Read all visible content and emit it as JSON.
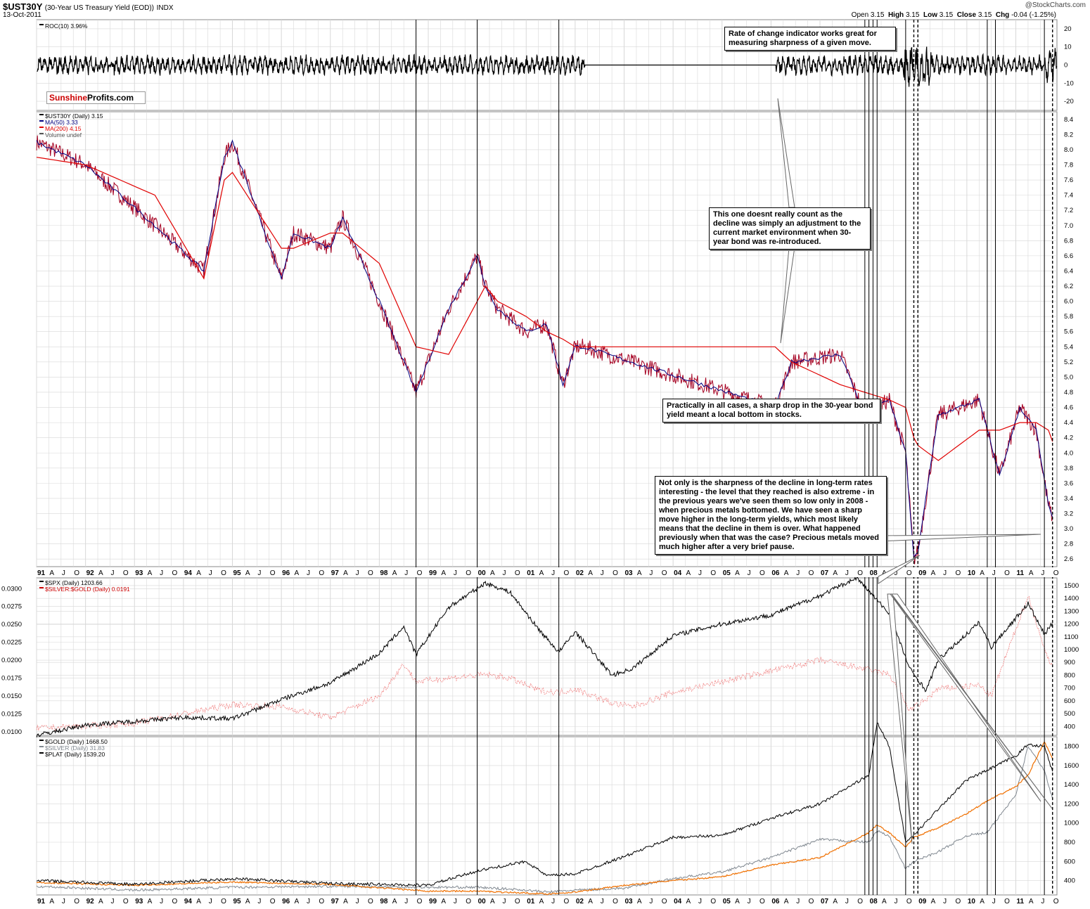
{
  "header": {
    "symbol": "$UST30Y",
    "description": "(30-Year US Treasury Yield (EOD))",
    "exchange": "INDX",
    "date": "13-Oct-2011",
    "ohlc": {
      "open_label": "Open",
      "open": "3.15",
      "high_label": "High",
      "high": "3.15",
      "low_label": "Low",
      "low": "3.15",
      "close_label": "Close",
      "close": "3.15",
      "chg_label": "Chg",
      "chg": "-0.04 (-1.25%)"
    },
    "watermark": "@StockCharts.com"
  },
  "logo": {
    "red": "Sunshine",
    "black": "Profits.com"
  },
  "callouts": {
    "roc": "Rate of change indicator works great for measuring sharpness of a given move.",
    "reintro": "This one doesnt really count as the decline was simply an adjustment to the current market environment when 30-year bond was re-introduced.",
    "practically": "Practically in all cases, a sharp drop in the 30-year bond yield meant a local bottom in stocks.",
    "notonly": "Not only is the sharpness of the decline in long-term rates interesting - the level that they reached is also extreme - in the previous years we've seen them so low only in 2008 - when precious metals bottomed. We have seen a sharp move higher in the long-term yields, which most likely means that the decline in them is over. What happened previously when that was the case? Precious metals moved much higher after a very brief pause."
  },
  "colors": {
    "ust": "#a50021",
    "ma50": "#000080",
    "ma200": "#e00000",
    "spx": "#000000",
    "ratio": "#f08080",
    "gold": "#f07000",
    "silver": "#808890",
    "plat": "#000000",
    "grid": "#d8d8d8"
  },
  "chart_data": [
    {
      "type": "line",
      "panel": "roc",
      "series": [
        {
          "name": "ROC(10)",
          "last": "3.96%"
        }
      ],
      "legend": [
        "ROC(10) 3.96%"
      ],
      "yticks": [
        "20",
        "10",
        "0",
        "-10",
        "-20"
      ],
      "ylim": [
        -25,
        25
      ]
    },
    {
      "type": "line",
      "panel": "yield",
      "legend": [
        "$UST30Y (Daily) 3.15",
        "MA(50) 3.33",
        "MA(200) 4.15",
        "Volume undef"
      ],
      "x_dates": [
        "1991-01",
        "1992-01",
        "1993-06",
        "1994-06",
        "1994-11",
        "1995-01",
        "1996-01",
        "1996-04",
        "1997-01",
        "1997-04",
        "1998-01",
        "1998-10",
        "1999-06",
        "2000-01",
        "2000-03",
        "2000-06",
        "2001-01",
        "2001-06",
        "2001-10",
        "2002-01",
        "2002-03",
        "2006-02",
        "2006-06",
        "2007-06",
        "2007-12",
        "2008-06",
        "2008-10",
        "2008-12",
        "2009-01",
        "2009-06",
        "2010-04",
        "2010-09",
        "2011-02",
        "2011-06",
        "2011-09",
        "2011-10"
      ],
      "ust30y": [
        8.1,
        7.8,
        7.0,
        6.4,
        7.9,
        8.1,
        6.3,
        6.9,
        6.7,
        7.1,
        6.0,
        4.8,
        5.9,
        6.6,
        6.2,
        5.9,
        5.6,
        5.7,
        4.9,
        5.4,
        5.4,
        4.6,
        5.2,
        5.3,
        4.5,
        4.7,
        4.0,
        2.6,
        2.7,
        4.5,
        4.7,
        3.7,
        4.6,
        4.3,
        3.3,
        3.15
      ],
      "ma200": [
        7.9,
        7.8,
        7.4,
        6.3,
        7.6,
        7.7,
        6.7,
        6.7,
        6.9,
        6.9,
        6.5,
        5.4,
        5.3,
        6.0,
        6.2,
        6.0,
        5.8,
        5.6,
        5.5,
        5.4,
        5.4,
        5.4,
        5.2,
        4.9,
        4.8,
        4.7,
        4.6,
        4.2,
        4.1,
        3.9,
        4.3,
        4.3,
        4.4,
        4.4,
        4.3,
        4.15
      ],
      "yticks": [
        "8.4",
        "8.2",
        "8.0",
        "7.8",
        "7.6",
        "7.4",
        "7.2",
        "7.0",
        "6.8",
        "6.6",
        "6.4",
        "6.2",
        "6.0",
        "5.8",
        "5.6",
        "5.4",
        "5.2",
        "5.0",
        "4.8",
        "4.6",
        "4.4",
        "4.2",
        "4.0",
        "3.8",
        "3.6",
        "3.4",
        "3.2",
        "3.0",
        "2.8",
        "2.6"
      ],
      "ylim": [
        2.5,
        8.5
      ],
      "xticks": [
        "91",
        "A",
        "J",
        "O",
        "92",
        "A",
        "J",
        "O",
        "93",
        "A",
        "J",
        "O",
        "94",
        "A",
        "J",
        "O",
        "95",
        "A",
        "J",
        "O",
        "96",
        "A",
        "J",
        "O",
        "97",
        "A",
        "J",
        "O",
        "98",
        "A",
        "J",
        "O",
        "99",
        "A",
        "J",
        "O",
        "00",
        "A",
        "J",
        "O",
        "01",
        "A",
        "J",
        "O",
        "02",
        "A",
        "J",
        "O",
        "03",
        "A",
        "J",
        "O",
        "04",
        "A",
        "J",
        "O",
        "05",
        "A",
        "J",
        "O",
        "06",
        "A",
        "J",
        "O",
        "07",
        "A",
        "J",
        "O",
        "08",
        "A",
        "J",
        "O",
        "09",
        "A",
        "J",
        "O",
        "10",
        "A",
        "J",
        "O",
        "11",
        "A",
        "J",
        "O"
      ]
    },
    {
      "type": "line",
      "panel": "spx",
      "legend": [
        "$SPX (Daily) 1203.66",
        "$SILVER:$GOLD (Daily) 0.0191"
      ],
      "x_dates": [
        "1991-01",
        "1992-01",
        "1993-01",
        "1994-01",
        "1995-01",
        "1996-01",
        "1997-01",
        "1998-01",
        "1998-07",
        "1998-10",
        "1999-06",
        "2000-03",
        "2000-09",
        "2001-04",
        "2001-09",
        "2002-01",
        "2002-10",
        "2003-03",
        "2004-01",
        "2005-01",
        "2006-01",
        "2007-01",
        "2007-10",
        "2008-06",
        "2008-11",
        "2009-03",
        "2009-06",
        "2010-04",
        "2010-07",
        "2011-04",
        "2011-08",
        "2011-10"
      ],
      "spx": [
        330,
        410,
        440,
        470,
        460,
        610,
        740,
        970,
        1180,
        960,
        1330,
        1520,
        1450,
        1160,
        980,
        1140,
        800,
        850,
        1110,
        1200,
        1270,
        1420,
        1560,
        1280,
        850,
        680,
        920,
        1210,
        1020,
        1360,
        1120,
        1203.66
      ],
      "silver_gold": [
        0.0105,
        0.0108,
        0.0112,
        0.0125,
        0.0138,
        0.0135,
        0.012,
        0.015,
        0.0195,
        0.017,
        0.0175,
        0.018,
        0.0175,
        0.0158,
        0.0155,
        0.016,
        0.014,
        0.0135,
        0.0155,
        0.017,
        0.0185,
        0.02,
        0.019,
        0.018,
        0.013,
        0.0145,
        0.016,
        0.0165,
        0.015,
        0.029,
        0.0215,
        0.0191
      ],
      "yticks_left": [
        "0.0300",
        "0.0275",
        "0.0250",
        "0.0225",
        "0.0200",
        "0.0175",
        "0.0150",
        "0.0125",
        "0.0100"
      ],
      "yticks_right": [
        "1500",
        "1400",
        "1300",
        "1200",
        "1100",
        "1000",
        "900",
        "800",
        "700",
        "600",
        "500",
        "400"
      ],
      "ylim_left": [
        0.0095,
        0.0315
      ],
      "ylim_right": [
        330,
        1560
      ]
    },
    {
      "type": "line",
      "panel": "metals",
      "legend": [
        "$GOLD (Daily) 1668.50",
        "$SILVER (Daily) 31.83",
        "$PLAT (Daily) 1539.20"
      ],
      "x_dates": [
        "1991-01",
        "1993-01",
        "1995-01",
        "1997-01",
        "1999-01",
        "2000-01",
        "2001-01",
        "2001-06",
        "2002-01",
        "2003-01",
        "2004-01",
        "2005-01",
        "2006-01",
        "2007-01",
        "2008-01",
        "2008-03",
        "2008-06",
        "2008-10",
        "2008-12",
        "2009-06",
        "2010-01",
        "2010-06",
        "2011-01",
        "2011-04",
        "2011-08",
        "2011-10"
      ],
      "gold": [
        380,
        350,
        385,
        360,
        290,
        290,
        270,
        260,
        280,
        350,
        400,
        440,
        560,
        640,
        900,
        980,
        900,
        750,
        850,
        950,
        1100,
        1230,
        1380,
        1500,
        1850,
        1668.5
      ],
      "silver_scaled": [
        340,
        300,
        330,
        340,
        330,
        330,
        300,
        280,
        300,
        320,
        420,
        490,
        640,
        830,
        800,
        920,
        860,
        520,
        600,
        700,
        870,
        900,
        1300,
        1800,
        1550,
        1250
      ],
      "plat": [
        400,
        360,
        420,
        370,
        350,
        500,
        600,
        450,
        470,
        650,
        850,
        870,
        1050,
        1200,
        1500,
        2050,
        1800,
        800,
        870,
        1150,
        1450,
        1550,
        1700,
        1820,
        1800,
        1539.2
      ],
      "yticks_right": [
        "1800",
        "1600",
        "1400",
        "1200",
        "1000",
        "800",
        "600",
        "400"
      ],
      "ylim": [
        250,
        1900
      ],
      "xticks": [
        "91",
        "A",
        "J",
        "O",
        "92",
        "A",
        "J",
        "O",
        "93",
        "A",
        "J",
        "O",
        "94",
        "A",
        "J",
        "O",
        "95",
        "A",
        "J",
        "O",
        "96",
        "A",
        "J",
        "O",
        "97",
        "A",
        "J",
        "O",
        "98",
        "A",
        "J",
        "O",
        "99",
        "A",
        "J",
        "O",
        "00",
        "A",
        "J",
        "O",
        "01",
        "A",
        "J",
        "O",
        "02",
        "A",
        "J",
        "O",
        "03",
        "A",
        "J",
        "O",
        "04",
        "A",
        "J",
        "O",
        "05",
        "A",
        "J",
        "O",
        "06",
        "A",
        "J",
        "O",
        "07",
        "A",
        "J",
        "O",
        "08",
        "A",
        "J",
        "O",
        "09",
        "A",
        "J",
        "O",
        "10",
        "A",
        "J",
        "O",
        "11",
        "A",
        "J",
        "O"
      ]
    }
  ],
  "markers": {
    "solid": [
      "1998-10",
      "2000-01",
      "2001-09",
      "2007-12",
      "2008-01",
      "2008-02",
      "2008-03",
      "2008-10",
      "2010-06",
      "2010-08",
      "2011-08"
    ],
    "dashed": [
      "2008-12",
      "2009-01",
      "2011-10"
    ]
  }
}
